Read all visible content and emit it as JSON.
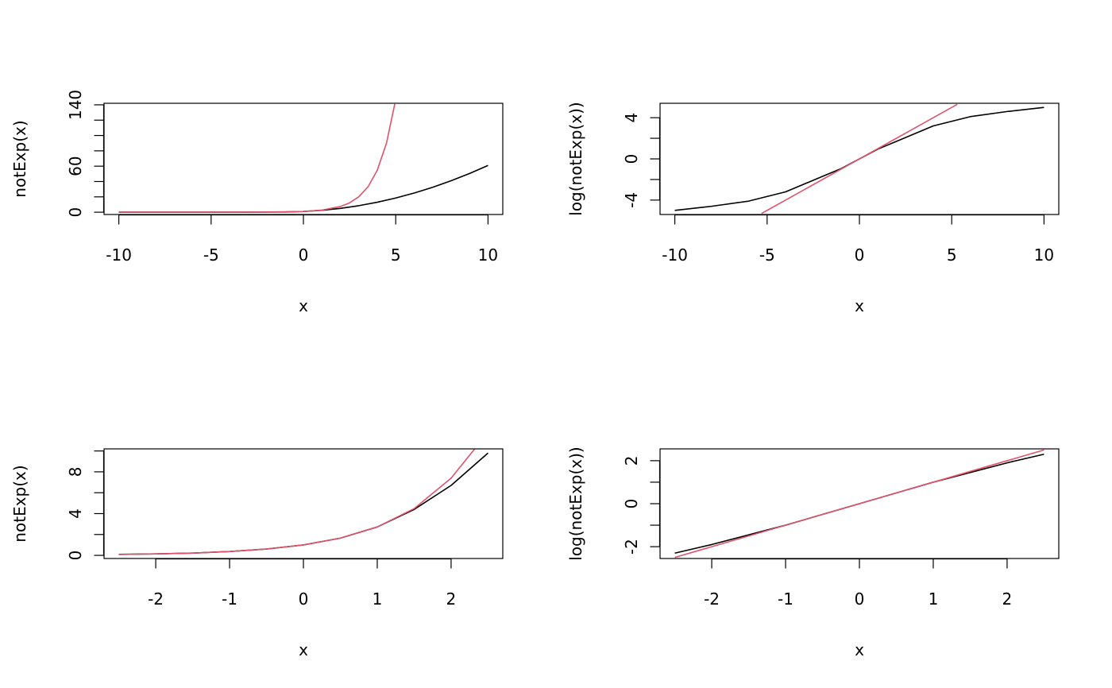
{
  "colors": {
    "black_curve": "#000000",
    "red_curve": "#DF536B",
    "axis": "#000000",
    "background": "#FFFFFF"
  },
  "chart_data": [
    {
      "type": "line",
      "xlabel": "x",
      "ylabel": "notExp(x)",
      "xlim": [
        -10.8,
        10.8
      ],
      "ylim": [
        -3,
        142
      ],
      "xticks": [
        -10,
        -5,
        0,
        5,
        10
      ],
      "yticks_labeled": [
        0,
        60,
        140
      ],
      "yticks_minor": [
        0,
        20,
        40,
        60,
        80,
        100,
        120,
        140
      ],
      "series": [
        {
          "color": "#000000",
          "x": [
            -10,
            -9,
            -8,
            -7,
            -6,
            -5,
            -4,
            -3,
            -2,
            -1,
            0,
            1,
            2,
            3,
            4,
            5,
            6,
            7,
            8,
            9,
            10
          ],
          "y": [
            0.01,
            0.01,
            0.01,
            0.02,
            0.02,
            0.03,
            0.04,
            0.06,
            0.12,
            0.33,
            1,
            2.5,
            5,
            8.5,
            13,
            18.5,
            25,
            32.5,
            41,
            50.5,
            61
          ]
        },
        {
          "color": "#DF536B",
          "x": [
            -10,
            -8,
            -6,
            -4,
            -2,
            0,
            1,
            2,
            2.5,
            3,
            3.5,
            4,
            4.5,
            4.95
          ],
          "y": [
            0,
            0,
            0,
            0.02,
            0.14,
            1,
            2.72,
            7.39,
            12.18,
            20.09,
            33.12,
            54.6,
            90.02,
            141.17
          ]
        }
      ]
    },
    {
      "type": "line",
      "xlabel": "x",
      "ylabel": "log(notExp(x))",
      "xlim": [
        -10.8,
        10.8
      ],
      "ylim": [
        -5.4,
        5.4
      ],
      "xticks": [
        -10,
        -5,
        0,
        5,
        10
      ],
      "yticks_labeled": [
        -4,
        0,
        4
      ],
      "yticks_minor": [
        -4,
        -2,
        0,
        2,
        4
      ],
      "series": [
        {
          "color": "#000000",
          "x": [
            -10,
            -8,
            -6,
            -4,
            -2,
            -1,
            0,
            1,
            2,
            4,
            6,
            8,
            10
          ],
          "y": [
            -5.0,
            -4.6,
            -4.1,
            -3.2,
            -1.7,
            -0.95,
            0,
            0.95,
            1.7,
            3.2,
            4.1,
            4.6,
            5.0
          ]
        },
        {
          "color": "#DF536B",
          "x": [
            -5.3,
            5.3
          ],
          "y": [
            -5.3,
            5.3
          ]
        }
      ]
    },
    {
      "type": "line",
      "xlabel": "x",
      "ylabel": "notExp(x)",
      "xlim": [
        -2.7,
        2.7
      ],
      "ylim": [
        -0.3,
        10.2
      ],
      "xticks": [
        -2,
        -1,
        0,
        1,
        2
      ],
      "yticks_labeled": [
        0,
        4,
        8
      ],
      "yticks_minor": [
        0,
        2,
        4,
        6,
        8,
        10
      ],
      "series": [
        {
          "color": "#000000",
          "x": [
            -2.5,
            -2,
            -1.5,
            -1,
            -0.5,
            0,
            0.5,
            1,
            1.5,
            2,
            2.5
          ],
          "y": [
            0.1,
            0.14,
            0.22,
            0.37,
            0.61,
            1,
            1.65,
            2.72,
            4.4,
            6.7,
            9.8
          ]
        },
        {
          "color": "#DF536B",
          "x": [
            -2.5,
            -2,
            -1.5,
            -1,
            -0.5,
            0,
            0.5,
            1,
            1.5,
            2,
            2.32
          ],
          "y": [
            0.08,
            0.14,
            0.22,
            0.37,
            0.61,
            1,
            1.65,
            2.72,
            4.48,
            7.39,
            10.2
          ]
        }
      ]
    },
    {
      "type": "line",
      "xlabel": "x",
      "ylabel": "log(notExp(x))",
      "xlim": [
        -2.7,
        2.7
      ],
      "ylim": [
        -2.55,
        2.55
      ],
      "xticks": [
        -2,
        -1,
        0,
        1,
        2
      ],
      "yticks_labeled": [
        -2,
        0,
        2
      ],
      "yticks_minor": [
        -2,
        -1,
        0,
        1,
        2
      ],
      "series": [
        {
          "color": "#000000",
          "x": [
            -2.5,
            -2,
            -1,
            0,
            1,
            2,
            2.5
          ],
          "y": [
            -2.3,
            -1.9,
            -1.0,
            0,
            1.0,
            1.9,
            2.3
          ]
        },
        {
          "color": "#DF536B",
          "x": [
            -2.5,
            2.5
          ],
          "y": [
            -2.5,
            2.5
          ]
        }
      ]
    }
  ]
}
